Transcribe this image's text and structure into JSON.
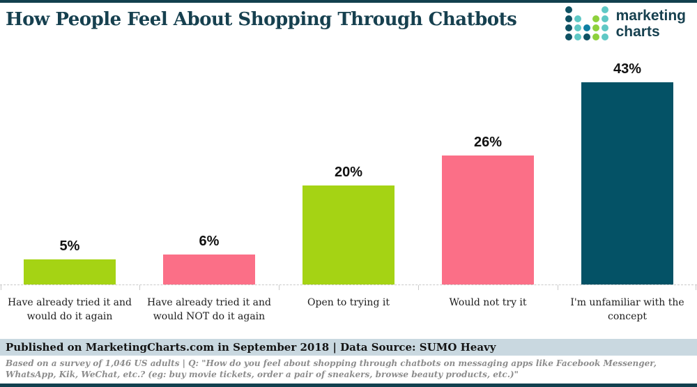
{
  "header": {
    "title": "How People Feel About Shopping Through Chatbots",
    "logo": {
      "text_line1": "marketing",
      "text_line2": "charts",
      "dot_colors": {
        "dark": "#0e5163",
        "cyan": "#5fc8c5",
        "green": "#8ed13c",
        "mid": "#0f7fa3"
      },
      "dot_pattern": [
        [
          "dark",
          "",
          "",
          "",
          "cyan"
        ],
        [
          "dark",
          "cyan",
          "",
          "green",
          "cyan"
        ],
        [
          "dark",
          "cyan",
          "mid",
          "green",
          "cyan"
        ],
        [
          "dark",
          "cyan",
          "dark",
          "green",
          "cyan"
        ]
      ]
    }
  },
  "chart_data": {
    "type": "bar",
    "title": "How People Feel About Shopping Through Chatbots",
    "categories": [
      "Have already tried it and would do it again",
      "Have already tried it and would NOT do it again",
      "Open to trying it",
      "Would not try it",
      "I'm unfamiliar with the concept"
    ],
    "values": [
      5,
      6,
      20,
      26,
      43
    ],
    "value_labels": [
      "5%",
      "6%",
      "20%",
      "26%",
      "43%"
    ],
    "bar_colors": [
      "#a5d314",
      "#fb6f87",
      "#a5d314",
      "#fb6f87",
      "#045266"
    ],
    "xlabel": "",
    "ylabel": "",
    "ylim": [
      0,
      45
    ],
    "grid": false,
    "legend": false,
    "unit": "%"
  },
  "footer": {
    "published": "Published on MarketingCharts.com in September 2018 | Data Source: SUMO Heavy",
    "note": "Based on a survey of 1,046 US adults | Q: \"How do you feel about shopping through chatbots on messaging apps like Facebook Messenger, WhatsApp, Kik, WeChat, etc.? (eg: buy movie tickets, order a pair of sneakers, browse beauty products, etc.)\""
  },
  "colors": {
    "brand_dark_teal": "#12404e",
    "green": "#a5d314",
    "pink": "#fb6f87",
    "teal_bar": "#045266",
    "published_band_bg": "#c9d8e0",
    "axis_dash": "#c9c9c9"
  }
}
